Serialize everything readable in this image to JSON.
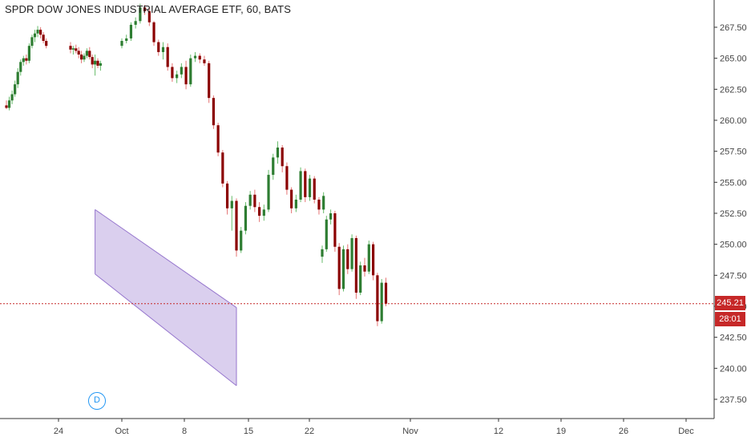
{
  "chart_data": {
    "type": "candlestick",
    "title": "SPDR DOW JONES INDUSTRIAL AVERAGE ETF, 60, BATS",
    "y_axis": {
      "position": "right",
      "ylim": [
        236.5,
        269.5
      ],
      "ticks": [
        "237.50",
        "240.00",
        "242.50",
        "245.00",
        "247.50",
        "250.00",
        "252.50",
        "255.00",
        "257.50",
        "260.00",
        "262.50",
        "265.00",
        "267.50"
      ]
    },
    "x_axis": {
      "ticks": [
        "24",
        "Oct",
        "8",
        "15",
        "22",
        "Nov",
        "12",
        "19",
        "26",
        "Dec"
      ]
    },
    "current_price": 245.21,
    "current_price_label": "245.21",
    "countdown_label": "28:01",
    "price_line_color": "#c62828",
    "up_color": "#2e7d32",
    "down_color": "#8b0000",
    "candles": [
      [
        261.2,
        261.6,
        260.9,
        261.0
      ],
      [
        261.0,
        261.9,
        260.8,
        261.6
      ],
      [
        261.6,
        262.4,
        261.3,
        262.1
      ],
      [
        262.1,
        263.2,
        261.9,
        262.9
      ],
      [
        262.9,
        264.2,
        262.6,
        263.9
      ],
      [
        263.9,
        264.9,
        263.6,
        264.7
      ],
      [
        264.7,
        265.2,
        264.4,
        265.0
      ],
      [
        265.0,
        265.3,
        264.5,
        264.8
      ],
      [
        264.8,
        266.2,
        264.6,
        266.0
      ],
      [
        266.0,
        266.9,
        265.8,
        266.7
      ],
      [
        266.7,
        267.3,
        266.3,
        267.0
      ],
      [
        267.0,
        267.6,
        266.7,
        267.3
      ],
      [
        267.3,
        267.5,
        266.6,
        266.9
      ],
      [
        266.9,
        267.1,
        266.2,
        266.4
      ],
      [
        266.4,
        266.6,
        265.8,
        266.0
      ],
      [
        266.0,
        266.3,
        265.4,
        265.7
      ],
      [
        265.7,
        266.0,
        265.3,
        265.8
      ],
      [
        265.8,
        266.1,
        265.4,
        265.6
      ],
      [
        265.6,
        265.9,
        265.0,
        265.3
      ],
      [
        265.3,
        265.6,
        264.6,
        264.9
      ],
      [
        264.9,
        265.4,
        264.7,
        265.2
      ],
      [
        265.2,
        265.8,
        265.0,
        265.6
      ],
      [
        265.6,
        265.9,
        264.9,
        265.1
      ],
      [
        265.1,
        265.3,
        264.2,
        264.5
      ],
      [
        264.5,
        265.3,
        263.6,
        264.8
      ],
      [
        264.8,
        265.0,
        264.2,
        264.4
      ],
      [
        264.4,
        264.8,
        264.0,
        264.6
      ],
      [
        266.0,
        266.6,
        265.8,
        266.4
      ],
      [
        266.4,
        266.9,
        266.2,
        266.6
      ],
      [
        266.6,
        267.9,
        266.4,
        267.7
      ],
      [
        267.7,
        268.3,
        267.4,
        268.0
      ],
      [
        268.0,
        269.4,
        267.8,
        269.1
      ],
      [
        269.1,
        269.3,
        268.5,
        268.8
      ],
      [
        268.8,
        269.1,
        267.6,
        267.9
      ],
      [
        267.9,
        268.0,
        266.0,
        266.3
      ],
      [
        266.3,
        266.5,
        265.2,
        265.5
      ],
      [
        265.5,
        266.3,
        264.9,
        265.9
      ],
      [
        265.9,
        266.2,
        264.0,
        264.3
      ],
      [
        264.3,
        264.6,
        263.1,
        263.4
      ],
      [
        263.4,
        264.0,
        263.0,
        263.7
      ],
      [
        263.7,
        264.6,
        263.4,
        264.3
      ],
      [
        264.3,
        264.8,
        262.5,
        262.9
      ],
      [
        262.9,
        265.3,
        262.7,
        265.0
      ],
      [
        265.0,
        265.5,
        264.7,
        265.2
      ],
      [
        265.2,
        265.4,
        264.6,
        264.9
      ],
      [
        264.9,
        265.2,
        264.4,
        264.6
      ],
      [
        264.6,
        264.8,
        261.4,
        261.8
      ],
      [
        261.8,
        262.0,
        259.3,
        259.6
      ],
      [
        259.6,
        259.8,
        257.1,
        257.4
      ],
      [
        257.4,
        257.6,
        254.6,
        254.9
      ],
      [
        254.9,
        255.1,
        252.4,
        252.9
      ],
      [
        252.9,
        253.9,
        251.1,
        253.5
      ],
      [
        253.5,
        253.7,
        249.0,
        249.5
      ],
      [
        249.5,
        251.4,
        249.3,
        251.1
      ],
      [
        251.1,
        253.4,
        250.8,
        253.1
      ],
      [
        253.1,
        254.3,
        252.8,
        254.0
      ],
      [
        254.0,
        254.4,
        252.6,
        253.0
      ],
      [
        253.0,
        253.4,
        251.8,
        252.3
      ],
      [
        252.3,
        253.2,
        251.9,
        252.8
      ],
      [
        252.8,
        256.0,
        252.6,
        255.6
      ],
      [
        255.6,
        257.3,
        255.2,
        257.0
      ],
      [
        257.0,
        258.3,
        256.5,
        257.8
      ],
      [
        257.8,
        258.0,
        255.8,
        256.3
      ],
      [
        256.3,
        256.6,
        254.0,
        254.4
      ],
      [
        254.4,
        254.6,
        252.5,
        252.9
      ],
      [
        252.9,
        254.0,
        252.6,
        253.6
      ],
      [
        253.6,
        256.2,
        253.4,
        255.9
      ],
      [
        255.9,
        256.1,
        253.4,
        253.8
      ],
      [
        253.8,
        255.6,
        253.5,
        255.3
      ],
      [
        255.3,
        255.5,
        253.3,
        253.6
      ],
      [
        253.6,
        253.8,
        252.4,
        252.8
      ],
      [
        252.8,
        254.2,
        252.5,
        253.9
      ],
      [
        249.0,
        249.9,
        248.5,
        249.6
      ],
      [
        249.6,
        252.3,
        249.4,
        252.0
      ],
      [
        252.0,
        252.8,
        251.6,
        252.5
      ],
      [
        252.5,
        252.7,
        249.4,
        249.8
      ],
      [
        249.8,
        250.1,
        245.9,
        246.4
      ],
      [
        246.4,
        249.9,
        246.2,
        249.6
      ],
      [
        249.6,
        250.0,
        247.6,
        248.0
      ],
      [
        248.0,
        250.8,
        247.8,
        250.5
      ],
      [
        250.5,
        250.7,
        245.6,
        246.1
      ],
      [
        246.1,
        248.6,
        245.9,
        248.3
      ],
      [
        248.3,
        248.9,
        247.4,
        247.8
      ],
      [
        247.8,
        250.3,
        247.6,
        250.0
      ],
      [
        250.0,
        250.2,
        247.1,
        247.5
      ],
      [
        247.5,
        247.7,
        243.4,
        243.8
      ],
      [
        243.8,
        247.2,
        243.6,
        246.9
      ],
      [
        246.9,
        247.3,
        245.0,
        245.21
      ]
    ],
    "channel": {
      "color": "#9575cd",
      "fill": "rgba(149,117,205,0.35)",
      "upper_start": [
        24,
        252.8
      ],
      "upper_end": [
        52,
        244.9
      ],
      "lower_start": [
        24,
        247.6
      ],
      "lower_end": [
        52,
        238.6
      ]
    }
  },
  "marker": {
    "label": "D",
    "color": "#2196f3"
  }
}
